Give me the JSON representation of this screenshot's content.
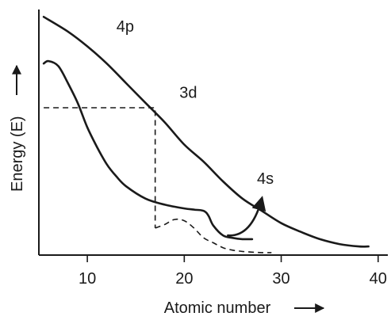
{
  "chart_data": {
    "type": "line",
    "title": "",
    "xlabel": "Atomic number",
    "ylabel": "Energy (E)",
    "xlim": [
      5,
      41
    ],
    "ylim": [
      0,
      100
    ],
    "x_ticks": [
      10,
      20,
      30,
      40
    ],
    "grid": false,
    "legend": "none",
    "series": [
      {
        "name": "4p",
        "label_at": [
          13,
          91
        ],
        "x": [
          5.5,
          8,
          10,
          12,
          14,
          16,
          18,
          20,
          22,
          24,
          26,
          28,
          30,
          32,
          34,
          36,
          38,
          39
        ],
        "y": [
          97,
          91,
          85,
          78,
          70,
          62,
          54,
          45,
          38,
          30,
          23,
          18,
          13,
          9.5,
          6.5,
          4.5,
          3.5,
          3.5
        ]
      },
      {
        "name": "3d",
        "label_at": [
          19.5,
          64
        ],
        "x": [
          5.5,
          6,
          7,
          8,
          9,
          10,
          11,
          12,
          13,
          14,
          16,
          18,
          20,
          21,
          22,
          22.5,
          23,
          24,
          25,
          26,
          27
        ],
        "y": [
          78,
          79,
          77,
          70,
          62,
          52,
          44,
          37,
          32,
          28,
          23,
          20.5,
          19,
          18.5,
          18,
          16,
          12,
          8,
          7,
          6.5,
          6.5
        ]
      },
      {
        "name": "4s",
        "label_at": [
          27.5,
          29
        ],
        "x": [
          17,
          18,
          19,
          20,
          21,
          22,
          23,
          24,
          25,
          26,
          27,
          28,
          29
        ],
        "y": [
          11,
          12.5,
          14.5,
          14,
          11,
          7,
          5,
          3,
          2,
          1.5,
          1.2,
          1,
          1
        ],
        "dashed": true
      }
    ],
    "annotations": [
      {
        "type": "dashed-guide",
        "points": [
          [
            5.5,
            60
          ],
          [
            17,
            60
          ],
          [
            17,
            11
          ]
        ]
      },
      {
        "type": "arrow",
        "from": [
          24.5,
          8
        ],
        "to": [
          28,
          23
        ],
        "points_to": "4s"
      }
    ]
  }
}
